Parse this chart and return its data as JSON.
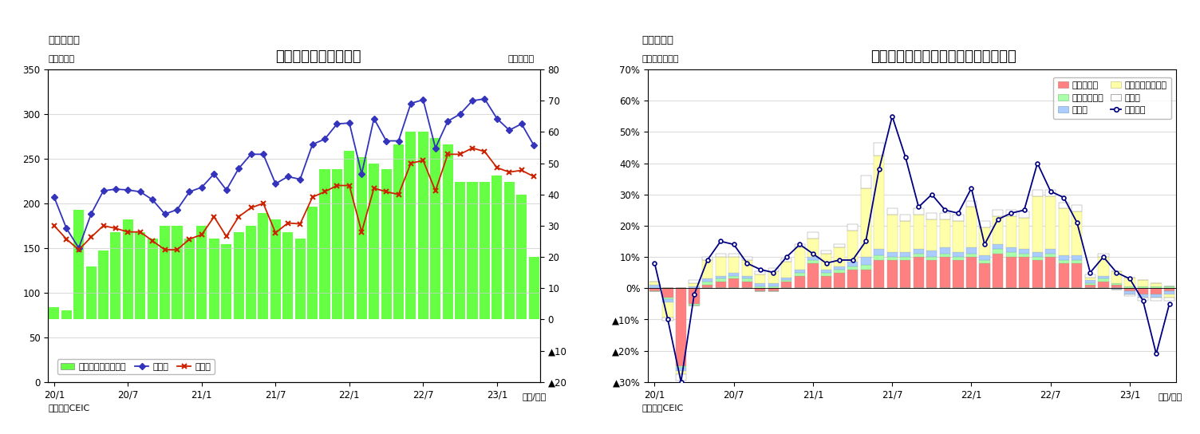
{
  "chart1": {
    "title": "マレーシア　貳易収支",
    "fig_label": "（図表７）",
    "ylabel_left": "（億ドル）",
    "ylabel_right": "（億ドル）",
    "xlabel": "（年/月）",
    "source": "（資料）CEIC",
    "xtick_labels": [
      "20/1",
      "20/7",
      "21/1",
      "21/7",
      "22/1",
      "22/7",
      "23/1"
    ],
    "ylim_left": [
      0,
      350
    ],
    "ylim_right": [
      -20,
      80
    ],
    "yticks_left": [
      0,
      50,
      100,
      150,
      200,
      250,
      300,
      350
    ],
    "yticks_right": [
      -20,
      -10,
      0,
      10,
      20,
      30,
      40,
      50,
      60,
      70,
      80
    ],
    "bar_color": "#66FF44",
    "export_color": "#3333BB",
    "import_color": "#CC2200",
    "trade_balance": [
      4,
      3,
      35,
      17,
      22,
      28,
      32,
      28,
      26,
      30,
      30,
      26,
      30,
      26,
      24,
      28,
      30,
      34,
      32,
      28,
      26,
      36,
      48,
      48,
      54,
      52,
      50,
      48,
      56,
      60,
      60,
      58,
      56,
      44,
      44,
      44,
      46,
      44,
      40,
      20
    ],
    "exports": [
      207,
      172,
      150,
      188,
      214,
      216,
      215,
      213,
      204,
      188,
      193,
      213,
      218,
      233,
      215,
      239,
      255,
      255,
      222,
      230,
      227,
      266,
      272,
      289,
      290,
      233,
      295,
      270,
      270,
      312,
      316,
      262,
      292,
      300,
      315,
      317,
      295,
      282,
      289,
      265
    ],
    "imports": [
      175,
      160,
      148,
      162,
      175,
      172,
      168,
      168,
      158,
      148,
      148,
      160,
      165,
      185,
      163,
      185,
      195,
      200,
      167,
      178,
      177,
      207,
      213,
      220,
      220,
      168,
      217,
      213,
      210,
      245,
      248,
      214,
      255,
      255,
      262,
      258,
      240,
      235,
      237,
      230
    ],
    "legend_trade": "貳易収支（右目盛）",
    "legend_export": "輸出額",
    "legend_import": "輸入額"
  },
  "chart2": {
    "title": "マレーシア　輸出の伸び率（品目別）",
    "fig_label": "（図表８）",
    "ylabel_left": "（前年同月比）",
    "xlabel": "（年/月）",
    "source": "（資料）CEIC",
    "xtick_labels": [
      "20/1",
      "20/7",
      "21/1",
      "21/7",
      "22/1",
      "22/7",
      "23/1"
    ],
    "ylim": [
      -0.3,
      0.7
    ],
    "yticks": [
      -0.3,
      -0.2,
      -0.1,
      0.0,
      0.1,
      0.2,
      0.3,
      0.4,
      0.5,
      0.6,
      0.7
    ],
    "mineral_fuel_color": "#FF8080",
    "animal_veg_oil_color": "#AAFFAA",
    "manufactured_color": "#AACCFF",
    "machinery_color": "#FFFFAA",
    "other_color": "#FFFFFF",
    "line_color": "#000080",
    "mineral_fuel": [
      -0.01,
      -0.03,
      -0.25,
      -0.05,
      0.01,
      0.02,
      0.03,
      0.02,
      -0.01,
      -0.01,
      0.02,
      0.04,
      0.08,
      0.04,
      0.05,
      0.06,
      0.06,
      0.09,
      0.09,
      0.09,
      0.1,
      0.09,
      0.1,
      0.09,
      0.1,
      0.08,
      0.11,
      0.1,
      0.1,
      0.09,
      0.1,
      0.08,
      0.08,
      0.01,
      0.02,
      0.01,
      -0.01,
      -0.02,
      -0.02,
      -0.01
    ],
    "animal_veg_oil": [
      0.0,
      -0.005,
      -0.005,
      -0.005,
      0.01,
      0.01,
      0.01,
      0.01,
      0.005,
      0.005,
      0.005,
      0.01,
      0.01,
      0.01,
      0.01,
      0.01,
      0.015,
      0.015,
      0.01,
      0.01,
      0.01,
      0.01,
      0.01,
      0.01,
      0.01,
      0.01,
      0.015,
      0.015,
      0.01,
      0.01,
      0.01,
      0.01,
      0.01,
      0.005,
      0.01,
      0.005,
      0.005,
      0.005,
      0.005,
      0.005
    ],
    "manufactured": [
      0.01,
      -0.01,
      -0.01,
      0.005,
      0.01,
      0.01,
      0.01,
      0.01,
      0.01,
      0.01,
      0.01,
      0.01,
      0.01,
      0.01,
      0.01,
      0.015,
      0.025,
      0.02,
      0.015,
      0.015,
      0.015,
      0.02,
      0.02,
      0.015,
      0.02,
      0.015,
      0.015,
      0.015,
      0.015,
      0.015,
      0.015,
      0.015,
      0.015,
      0.01,
      0.01,
      -0.005,
      -0.01,
      -0.01,
      -0.01,
      -0.01
    ],
    "machinery": [
      0.01,
      -0.05,
      -0.01,
      0.01,
      0.06,
      0.06,
      0.05,
      0.05,
      0.03,
      0.04,
      0.05,
      0.07,
      0.06,
      0.05,
      0.06,
      0.1,
      0.22,
      0.3,
      0.12,
      0.1,
      0.11,
      0.1,
      0.09,
      0.1,
      0.13,
      0.09,
      0.09,
      0.1,
      0.1,
      0.18,
      0.17,
      0.15,
      0.14,
      0.01,
      0.06,
      0.04,
      0.03,
      0.02,
      0.01,
      -0.01
    ],
    "other": [
      0.0,
      -0.01,
      -0.02,
      0.01,
      0.01,
      0.01,
      0.01,
      0.01,
      0.01,
      0.01,
      0.01,
      0.01,
      0.02,
      0.01,
      0.01,
      0.02,
      0.04,
      0.04,
      0.02,
      0.02,
      0.02,
      0.02,
      0.02,
      0.02,
      0.02,
      0.02,
      0.02,
      0.02,
      0.02,
      0.02,
      0.02,
      0.02,
      0.02,
      0.01,
      0.01,
      0.0,
      -0.005,
      -0.01,
      -0.01,
      -0.01
    ],
    "total_line": [
      0.08,
      -0.1,
      -0.3,
      -0.02,
      0.09,
      0.15,
      0.14,
      0.08,
      0.06,
      0.05,
      0.1,
      0.14,
      0.11,
      0.08,
      0.09,
      0.09,
      0.15,
      0.38,
      0.55,
      0.42,
      0.26,
      0.3,
      0.25,
      0.24,
      0.32,
      0.14,
      0.22,
      0.24,
      0.25,
      0.4,
      0.31,
      0.29,
      0.21,
      0.05,
      0.1,
      0.05,
      0.03,
      -0.04,
      -0.21,
      -0.05
    ],
    "legend_mineral": "銃物性燃料",
    "legend_animal": "動植物性油脂",
    "legend_mfg": "製造品",
    "legend_machinery": "機械・輸送用機器",
    "legend_other": "その他",
    "legend_total": "輸出合計"
  }
}
